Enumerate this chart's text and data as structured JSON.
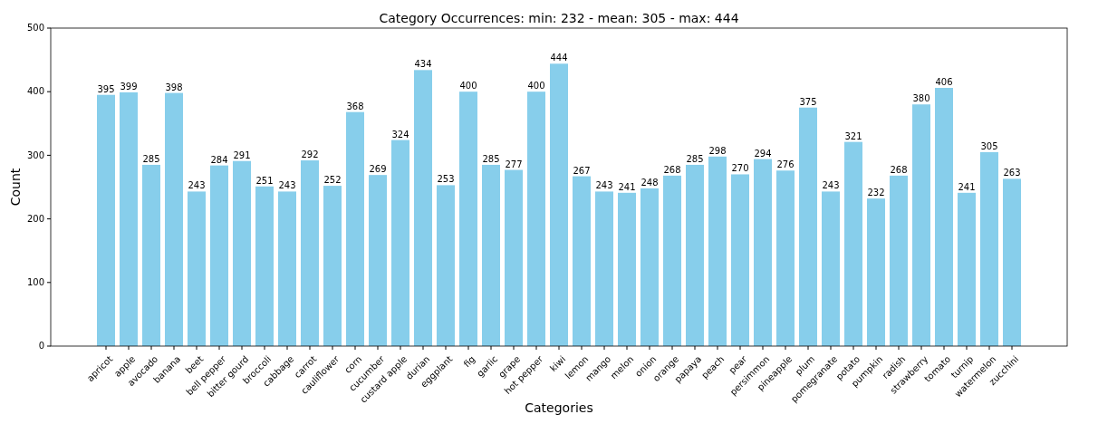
{
  "chart_data": {
    "type": "bar",
    "title": "Category Occurrences: min: 232 - mean: 305 - max: 444",
    "xlabel": "Categories",
    "ylabel": "Count",
    "categories": [
      "apricot",
      "apple",
      "avocado",
      "banana",
      "beet",
      "bell pepper",
      "bitter gourd",
      "broccoli",
      "cabbage",
      "carrot",
      "cauliflower",
      "corn",
      "cucumber",
      "custard apple",
      "durian",
      "eggplant",
      "fig",
      "garlic",
      "grape",
      "hot pepper",
      "kiwi",
      "lemon",
      "mango",
      "melon",
      "onion",
      "orange",
      "papaya",
      "peach",
      "pear",
      "persimmon",
      "pineapple",
      "plum",
      "pomegranate",
      "potato",
      "pumpkin",
      "radish",
      "strawberry",
      "tomato",
      "turnip",
      "watermelon",
      "zucchini"
    ],
    "values": [
      395,
      399,
      285,
      398,
      243,
      284,
      291,
      251,
      243,
      292,
      252,
      368,
      269,
      324,
      434,
      253,
      400,
      285,
      277,
      400,
      444,
      267,
      243,
      241,
      248,
      268,
      285,
      298,
      270,
      294,
      276,
      375,
      243,
      321,
      232,
      268,
      380,
      406,
      241,
      305,
      263
    ],
    "color": "#87ceeb",
    "ylim": [
      0,
      500
    ],
    "yticks": [
      0,
      100,
      200,
      300,
      400,
      500
    ],
    "data_labels": true,
    "grid": false
  }
}
